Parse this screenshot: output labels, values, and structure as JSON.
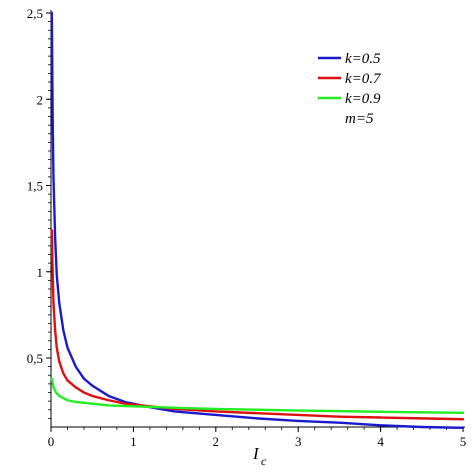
{
  "chart_data": {
    "type": "line",
    "title": "",
    "xlabel": "I",
    "xlabel_subscript": "c",
    "ylabel": "",
    "xlim": [
      0,
      5
    ],
    "ylim": [
      0.1,
      2.5
    ],
    "grid": false,
    "legend_position": "top-right",
    "x_ticks": [
      0,
      1,
      2,
      3,
      4,
      5
    ],
    "x_tick_labels": [
      "0",
      "1",
      "2",
      "3",
      "4",
      "5"
    ],
    "y_ticks": [
      0.5,
      1,
      1.5,
      2,
      2.5
    ],
    "y_tick_labels": [
      "0,5",
      "1",
      "1,5",
      "2",
      "2,5"
    ],
    "legend_note": "m=5",
    "series": [
      {
        "name": "k=0.5",
        "color": "#1a1acc",
        "points": [
          [
            0.01,
            2.5
          ],
          [
            0.02,
            1.9
          ],
          [
            0.03,
            1.55
          ],
          [
            0.05,
            1.2
          ],
          [
            0.07,
            0.98
          ],
          [
            0.1,
            0.82
          ],
          [
            0.15,
            0.66
          ],
          [
            0.2,
            0.56
          ],
          [
            0.3,
            0.45
          ],
          [
            0.4,
            0.38
          ],
          [
            0.5,
            0.34
          ],
          [
            0.7,
            0.28
          ],
          [
            0.9,
            0.245
          ],
          [
            1.2,
            0.215
          ],
          [
            1.5,
            0.19
          ],
          [
            2,
            0.17
          ],
          [
            2.5,
            0.15
          ],
          [
            3,
            0.135
          ],
          [
            3.5,
            0.125
          ],
          [
            4,
            0.11
          ],
          [
            4.5,
            0.1
          ],
          [
            5,
            0.095
          ]
        ]
      },
      {
        "name": "k=0.7",
        "color": "#dd1111",
        "points": [
          [
            0.01,
            1.24
          ],
          [
            0.02,
            1.0
          ],
          [
            0.03,
            0.82
          ],
          [
            0.05,
            0.66
          ],
          [
            0.07,
            0.56
          ],
          [
            0.1,
            0.48
          ],
          [
            0.15,
            0.41
          ],
          [
            0.2,
            0.37
          ],
          [
            0.3,
            0.33
          ],
          [
            0.4,
            0.3
          ],
          [
            0.5,
            0.28
          ],
          [
            0.7,
            0.255
          ],
          [
            0.9,
            0.235
          ],
          [
            1.2,
            0.22
          ],
          [
            1.5,
            0.205
          ],
          [
            2,
            0.19
          ],
          [
            2.5,
            0.18
          ],
          [
            3,
            0.17
          ],
          [
            3.5,
            0.16
          ],
          [
            4,
            0.155
          ],
          [
            4.5,
            0.15
          ],
          [
            5,
            0.145
          ]
        ]
      },
      {
        "name": "k=0.9",
        "color": "#22ee22",
        "points": [
          [
            0.01,
            0.38
          ],
          [
            0.03,
            0.33
          ],
          [
            0.06,
            0.3
          ],
          [
            0.1,
            0.28
          ],
          [
            0.2,
            0.255
          ],
          [
            0.3,
            0.245
          ],
          [
            0.5,
            0.235
          ],
          [
            0.7,
            0.225
          ],
          [
            1,
            0.22
          ],
          [
            1.3,
            0.215
          ],
          [
            1.6,
            0.21
          ],
          [
            2,
            0.205
          ],
          [
            2.5,
            0.2
          ],
          [
            3,
            0.195
          ],
          [
            3.5,
            0.192
          ],
          [
            4,
            0.188
          ],
          [
            4.5,
            0.185
          ],
          [
            5,
            0.182
          ]
        ]
      }
    ]
  }
}
